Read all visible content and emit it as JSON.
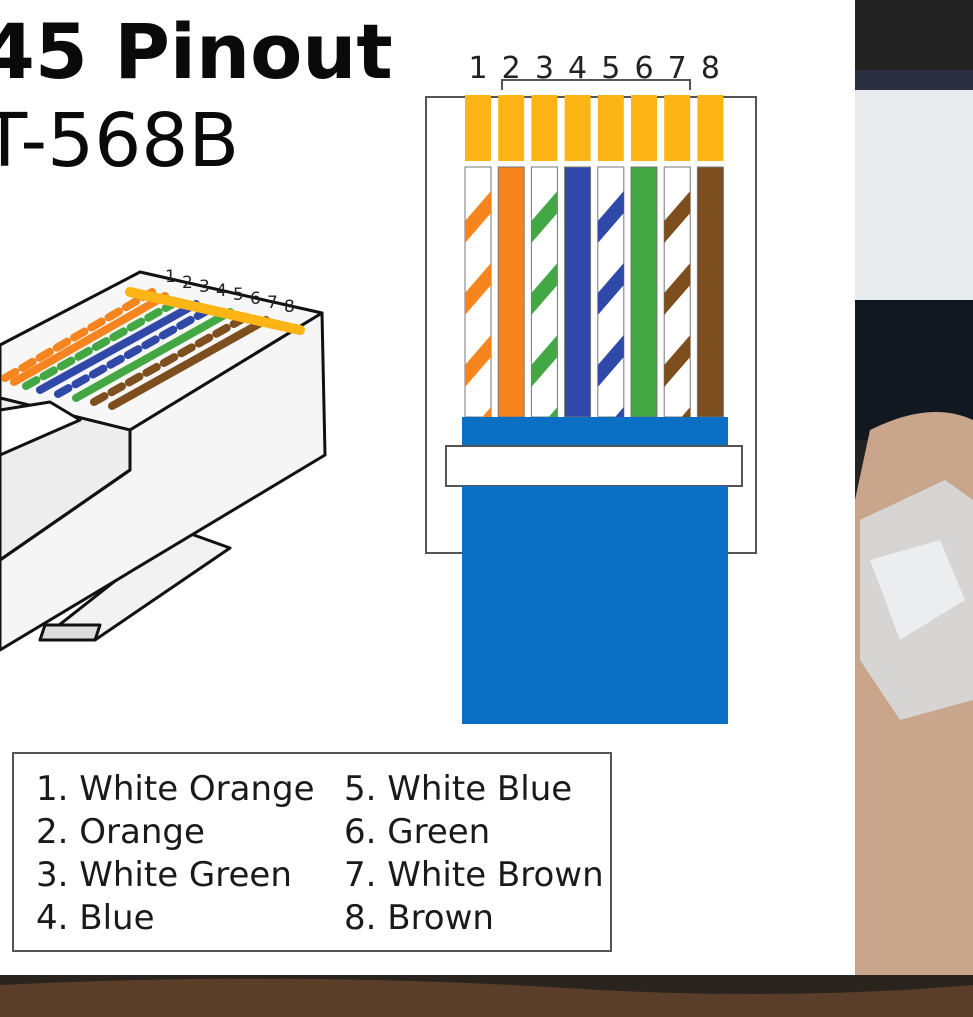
{
  "title": {
    "line1": "45 Pinout",
    "line2": "T-568B"
  },
  "pin_numbers": [
    "1",
    "2",
    "3",
    "4",
    "5",
    "6",
    "7",
    "8"
  ],
  "legend": [
    {
      "label": "1. White Orange"
    },
    {
      "label": "2. Orange"
    },
    {
      "label": "3. White Green"
    },
    {
      "label": "4. Blue"
    },
    {
      "label": "5. White Blue"
    },
    {
      "label": "6. Green"
    },
    {
      "label": "7. White Brown"
    },
    {
      "label": "8. Brown"
    }
  ],
  "wires": [
    {
      "pin": "1",
      "base": "white",
      "stripe": "orange"
    },
    {
      "pin": "2",
      "base": "orange",
      "stripe": null
    },
    {
      "pin": "3",
      "base": "white",
      "stripe": "green"
    },
    {
      "pin": "4",
      "base": "blue",
      "stripe": null
    },
    {
      "pin": "5",
      "base": "white",
      "stripe": "blue"
    },
    {
      "pin": "6",
      "base": "green",
      "stripe": null
    },
    {
      "pin": "7",
      "base": "white",
      "stripe": "brown"
    },
    {
      "pin": "8",
      "base": "brown",
      "stripe": null
    }
  ],
  "colors": {
    "orange": "#f7851f",
    "green": "#43a843",
    "blue": "#3048a8",
    "brown": "#7d4e1e",
    "white": "#ffffff",
    "gold_pin": "#fcb515",
    "jacket": "#0b6fc4",
    "panel": "#ffffff"
  }
}
